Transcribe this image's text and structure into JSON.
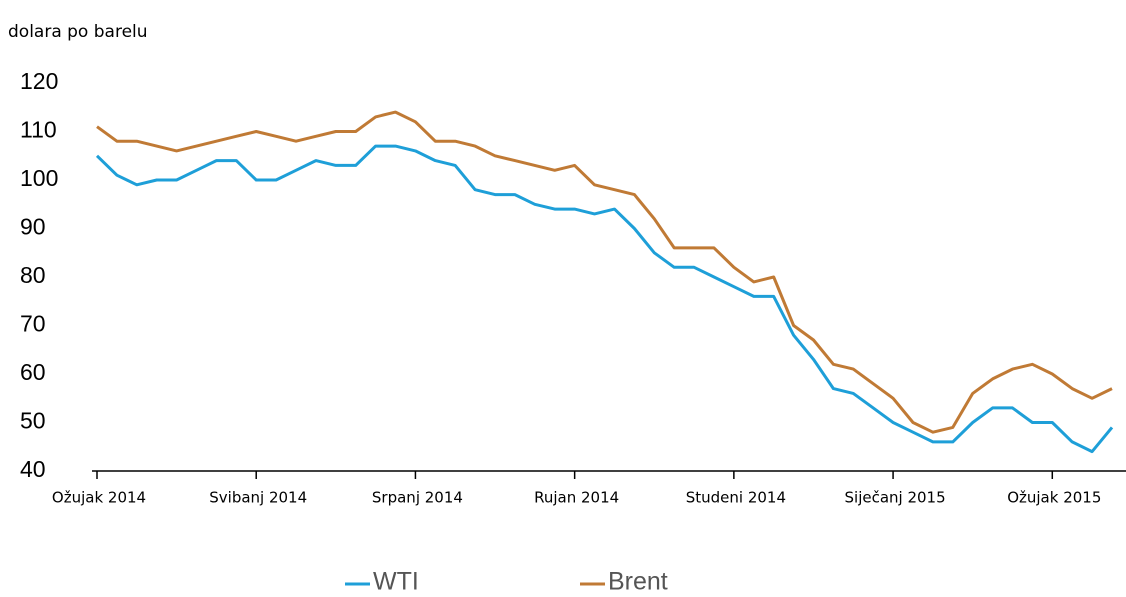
{
  "chart_data": {
    "type": "line",
    "y_label": "dolara po barelu",
    "categories": [
      "Ožujak 2014",
      null,
      null,
      null,
      null,
      null,
      null,
      null,
      "Svibanj 2014",
      null,
      null,
      null,
      null,
      null,
      null,
      null,
      "Srpanj 2014",
      null,
      null,
      null,
      null,
      null,
      null,
      null,
      "Rujan 2014",
      null,
      null,
      null,
      null,
      null,
      null,
      null,
      "Studeni 2014",
      null,
      null,
      null,
      null,
      null,
      null,
      null,
      "Siječanj 2015",
      null,
      null,
      null,
      null,
      null,
      null,
      null,
      "Ožujak 2015",
      null,
      null,
      null
    ],
    "series": [
      {
        "name": "WTI",
        "color": "#1e9fd8",
        "values": [
          105,
          101,
          99,
          100,
          100,
          102,
          104,
          104,
          100,
          100,
          102,
          104,
          103,
          103,
          107,
          107,
          106,
          104,
          103,
          98,
          97,
          97,
          95,
          94,
          94,
          93,
          94,
          90,
          85,
          82,
          82,
          80,
          78,
          76,
          76,
          68,
          63,
          57,
          56,
          53,
          50,
          48,
          46,
          46,
          50,
          53,
          53,
          50,
          50,
          46,
          44,
          49
        ]
      },
      {
        "name": "Brent",
        "color": "#c07a35",
        "values": [
          111,
          108,
          108,
          107,
          106,
          107,
          108,
          109,
          110,
          109,
          108,
          109,
          110,
          110,
          113,
          114,
          112,
          108,
          108,
          107,
          105,
          104,
          103,
          102,
          103,
          99,
          98,
          97,
          92,
          86,
          86,
          86,
          82,
          79,
          80,
          70,
          67,
          62,
          61,
          58,
          55,
          50,
          48,
          49,
          56,
          59,
          61,
          62,
          60,
          57,
          55,
          57
        ]
      }
    ],
    "ylim": [
      40,
      120
    ],
    "yticks": [
      40,
      50,
      60,
      70,
      80,
      90,
      100,
      110,
      120
    ],
    "grid": false,
    "legend": "bottom"
  }
}
